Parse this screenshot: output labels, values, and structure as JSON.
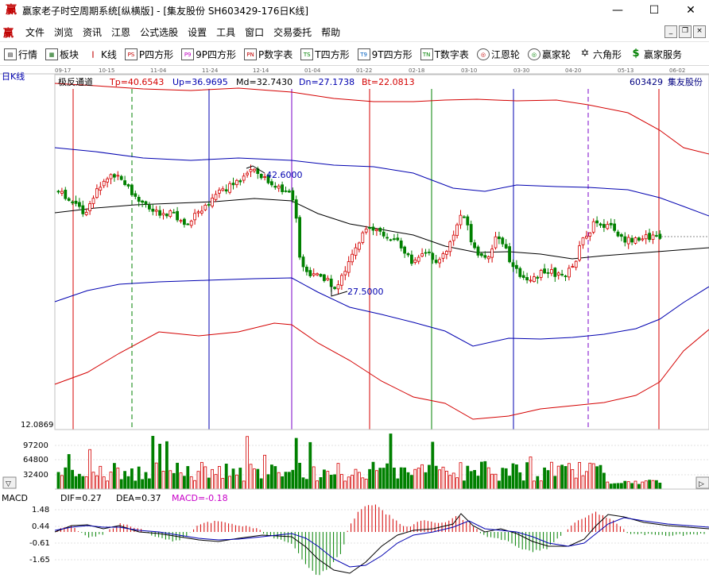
{
  "window": {
    "title": "赢家老子时空周期系统[纵横版] - [集友股份  SH603429-176日K线]",
    "app_icon_glyph": "赢",
    "controls": {
      "minimize": "—",
      "maximize": "☐",
      "close": "✕"
    }
  },
  "menu": {
    "icon_glyph": "赢",
    "items": [
      "文件",
      "浏览",
      "资讯",
      "江恩",
      "公式选股",
      "设置",
      "工具",
      "窗口",
      "交易委托",
      "帮助"
    ],
    "mdi": [
      "_",
      "❐",
      "×"
    ]
  },
  "toolbar": [
    {
      "label": "行情",
      "icon": "table-icon",
      "glyph": "▤"
    },
    {
      "label": "板块",
      "icon": "grid-icon",
      "glyph": "▦"
    },
    {
      "label": "K线",
      "icon": "kline-icon",
      "glyph": "┃"
    },
    {
      "label": "P四方形",
      "icon": "p-square-icon",
      "glyph": "PS"
    },
    {
      "label": "9P四方形",
      "icon": "9p-square-icon",
      "glyph": "P9"
    },
    {
      "label": "P数字表",
      "icon": "p-number-table-icon",
      "glyph": "PN"
    },
    {
      "label": "T四方形",
      "icon": "t-square-icon",
      "glyph": "TS"
    },
    {
      "label": "9T四方形",
      "icon": "9t-square-icon",
      "glyph": "T9"
    },
    {
      "label": "T数字表",
      "icon": "t-number-table-icon",
      "glyph": "TN"
    },
    {
      "label": "江恩轮",
      "icon": "gann-wheel-icon",
      "glyph": "◎"
    },
    {
      "label": "赢家轮",
      "icon": "winner-wheel-icon",
      "glyph": "◎"
    },
    {
      "label": "六角形",
      "icon": "hexagon-icon",
      "glyph": "✡"
    },
    {
      "label": "赢家服务",
      "icon": "dollar-icon",
      "glyph": "$"
    }
  ],
  "colors": {
    "red": "#d40000",
    "green": "#008000",
    "blue": "#0000b0",
    "purple": "#7a00c8",
    "grid": "#c8c8c8",
    "magenta": "#c800c8"
  },
  "chart": {
    "period_label": "日K线",
    "date_ticks": [
      "09-17",
      "10-15",
      "11-04",
      "11-24",
      "12-14",
      "01-04",
      "01-22",
      "02-18",
      "03-10",
      "03-30",
      "04-20",
      "05-13",
      "06-02"
    ],
    "indicator": {
      "name": "极反通道",
      "tp": "Tp=40.6543",
      "up": "Up=36.9695",
      "md": "Md=32.7430",
      "dn": "Dn=27.1738",
      "bt": "Bt=22.0813"
    },
    "stock_code": "603429",
    "stock_name": "集友股份",
    "high_label": "42.6000",
    "low_label": "27.5000",
    "price_floor_label": "12.0869",
    "volume_labels": [
      "97200",
      "64800",
      "32400"
    ],
    "macd": {
      "name": "MACD",
      "dif": "DIF=0.27",
      "dea": "DEA=0.37",
      "macd": "MACD=-0.18",
      "labels": [
        "1.48",
        "0.44",
        "-0.61",
        "-1.65"
      ]
    }
  }
}
